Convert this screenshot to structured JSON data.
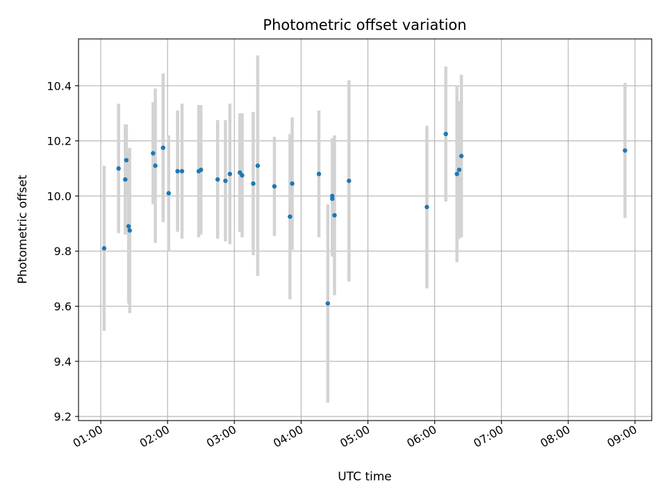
{
  "chart_data": {
    "type": "scatter",
    "title": "Photometric offset variation",
    "xlabel": "UTC time",
    "ylabel": "Photometric offset",
    "xlim": [
      "00:40",
      "09:15"
    ],
    "ylim": [
      9.185,
      10.57
    ],
    "x_ticks": [
      "01:00",
      "02:00",
      "03:00",
      "04:00",
      "05:00",
      "06:00",
      "07:00",
      "08:00",
      "09:00"
    ],
    "y_ticks": [
      9.2,
      9.4,
      9.6,
      9.8,
      10.0,
      10.2,
      10.4
    ],
    "y_tick_labels": [
      "9.2",
      "9.4",
      "9.6",
      "9.8",
      "10.0",
      "10.2",
      "10.4"
    ],
    "grid": true,
    "point_color": "#1f77b4",
    "errorbar_color": "#d3d3d3",
    "points": [
      {
        "time": "01:03",
        "y": 9.81,
        "err": 0.3
      },
      {
        "time": "01:16",
        "y": 10.1,
        "err": 0.235
      },
      {
        "time": "01:22",
        "y": 10.06,
        "err": 0.2
      },
      {
        "time": "01:23",
        "y": 10.13,
        "err": 0.13
      },
      {
        "time": "01:25",
        "y": 9.89,
        "err": 0.28
      },
      {
        "time": "01:26",
        "y": 9.875,
        "err": 0.3
      },
      {
        "time": "01:47",
        "y": 10.155,
        "err": 0.185
      },
      {
        "time": "01:49",
        "y": 10.11,
        "err": 0.28
      },
      {
        "time": "01:56",
        "y": 10.175,
        "err": 0.27
      },
      {
        "time": "02:01",
        "y": 10.01,
        "err": 0.21
      },
      {
        "time": "02:09",
        "y": 10.09,
        "err": 0.22
      },
      {
        "time": "02:13",
        "y": 10.09,
        "err": 0.245
      },
      {
        "time": "02:28",
        "y": 10.09,
        "err": 0.24
      },
      {
        "time": "02:30",
        "y": 10.095,
        "err": 0.235
      },
      {
        "time": "02:45",
        "y": 10.06,
        "err": 0.215
      },
      {
        "time": "02:52",
        "y": 10.055,
        "err": 0.22
      },
      {
        "time": "02:56",
        "y": 10.08,
        "err": 0.255
      },
      {
        "time": "03:05",
        "y": 10.085,
        "err": 0.215
      },
      {
        "time": "03:07",
        "y": 10.075,
        "err": 0.225
      },
      {
        "time": "03:17",
        "y": 10.045,
        "err": 0.26
      },
      {
        "time": "03:21",
        "y": 10.11,
        "err": 0.4
      },
      {
        "time": "03:36",
        "y": 10.035,
        "err": 0.18
      },
      {
        "time": "03:50",
        "y": 9.925,
        "err": 0.3
      },
      {
        "time": "03:52",
        "y": 10.045,
        "err": 0.24
      },
      {
        "time": "04:16",
        "y": 10.08,
        "err": 0.23
      },
      {
        "time": "04:24",
        "y": 9.61,
        "err": 0.36
      },
      {
        "time": "04:28",
        "y": 10.0,
        "err": 0.21
      },
      {
        "time": "04:28",
        "y": 9.99,
        "err": 0.21
      },
      {
        "time": "04:30",
        "y": 9.93,
        "err": 0.29
      },
      {
        "time": "04:43",
        "y": 10.055,
        "err": 0.365
      },
      {
        "time": "05:53",
        "y": 9.96,
        "err": 0.295
      },
      {
        "time": "06:10",
        "y": 10.225,
        "err": 0.245
      },
      {
        "time": "06:20",
        "y": 10.08,
        "err": 0.32
      },
      {
        "time": "06:22",
        "y": 10.095,
        "err": 0.25
      },
      {
        "time": "06:24",
        "y": 10.145,
        "err": 0.295
      },
      {
        "time": "08:51",
        "y": 10.165,
        "err": 0.245
      }
    ]
  }
}
